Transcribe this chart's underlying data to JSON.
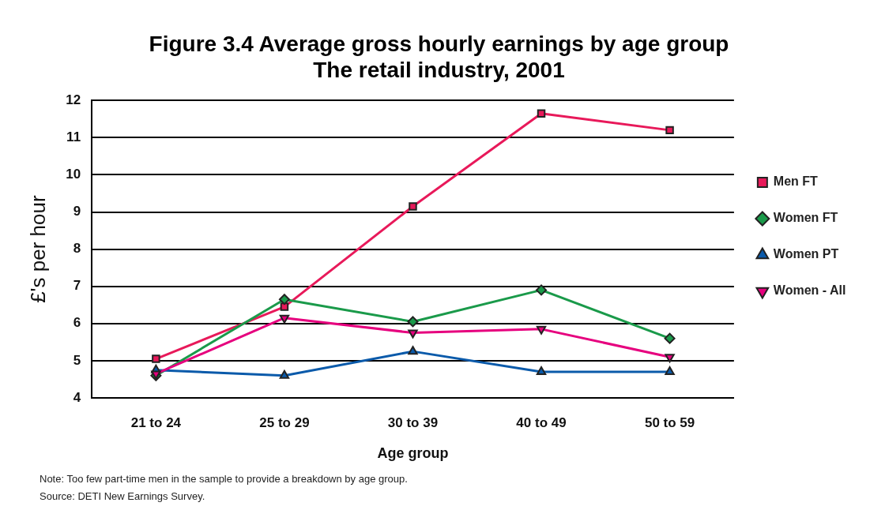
{
  "chart_data": {
    "type": "line",
    "title": "Figure 3.4 Average gross hourly earnings by age group",
    "subtitle": "The retail industry, 2001",
    "xlabel": "Age group",
    "ylabel": "£'s per hour",
    "categories": [
      "21 to 24",
      "25 to 29",
      "30 to 39",
      "40 to 49",
      "50 to 59"
    ],
    "series": [
      {
        "name": "Men FT",
        "color": "#e8195a",
        "marker": "square",
        "values": [
          5.05,
          6.45,
          9.15,
          11.65,
          11.2
        ]
      },
      {
        "name": "Women FT",
        "color": "#1a9a4a",
        "marker": "diamond",
        "values": [
          4.6,
          6.65,
          6.05,
          6.9,
          5.6
        ]
      },
      {
        "name": "Women PT",
        "color": "#0a5aaa",
        "marker": "triangle",
        "values": [
          4.75,
          4.6,
          5.25,
          4.7,
          4.7
        ]
      },
      {
        "name": "Women - All",
        "color": "#e6007e",
        "marker": "triangle-down",
        "values": [
          4.65,
          6.15,
          5.75,
          5.85,
          5.1
        ]
      }
    ],
    "ylim": [
      4,
      12
    ],
    "yticks": [
      4,
      5,
      6,
      7,
      8,
      9,
      10,
      11,
      12
    ],
    "grid": "y",
    "legend": "right",
    "annotations": [
      "Note: Too few part-time men in the sample to provide a breakdown by age group.",
      "Source: DETI New Earnings Survey."
    ]
  }
}
